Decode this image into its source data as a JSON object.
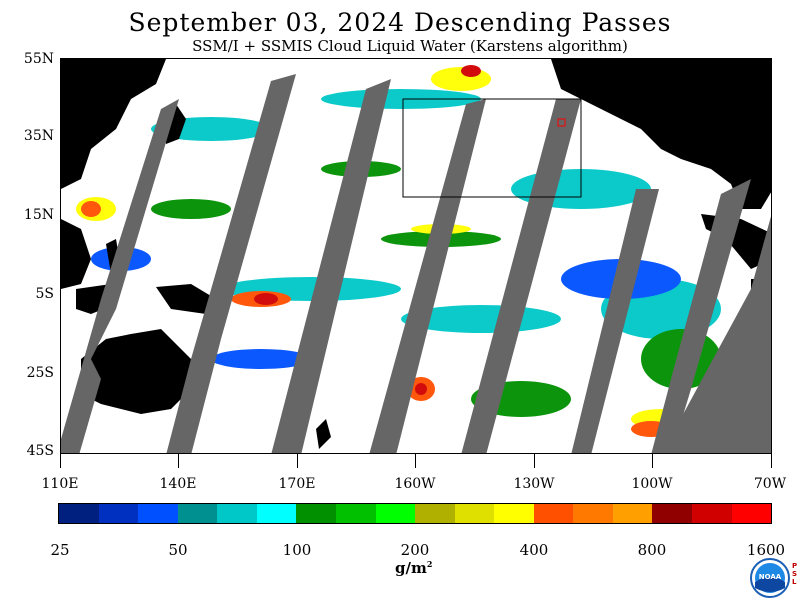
{
  "title": "September 03, 2024  Descending Passes",
  "subtitle": "SSM/I + SSMIS Cloud Liquid Water (Karstens algorithm)",
  "lat_labels": [
    "55N",
    "35N",
    "15N",
    "5S",
    "25S",
    "45S"
  ],
  "lon_labels": [
    "110E",
    "140E",
    "170E",
    "160W",
    "130W",
    "100W",
    "70W"
  ],
  "colorbar": {
    "colors": [
      "#002080",
      "#0030c0",
      "#0050ff",
      "#009090",
      "#00c8c8",
      "#00ffff",
      "#009000",
      "#00c000",
      "#00ff00",
      "#b0b000",
      "#e0e000",
      "#ffff00",
      "#ff5000",
      "#ff7800",
      "#ffa000",
      "#900000",
      "#d00000",
      "#ff0000"
    ],
    "labels": [
      "25",
      "50",
      "100",
      "200",
      "400",
      "800",
      "1600"
    ]
  },
  "units_base": "g/m",
  "units_exp": "2",
  "colors": {
    "land": "#000000",
    "no_data_swath": "#666666",
    "background": "#ffffff"
  },
  "logo": {
    "text": "NOAA",
    "psl": [
      "P",
      "S",
      "L"
    ]
  }
}
